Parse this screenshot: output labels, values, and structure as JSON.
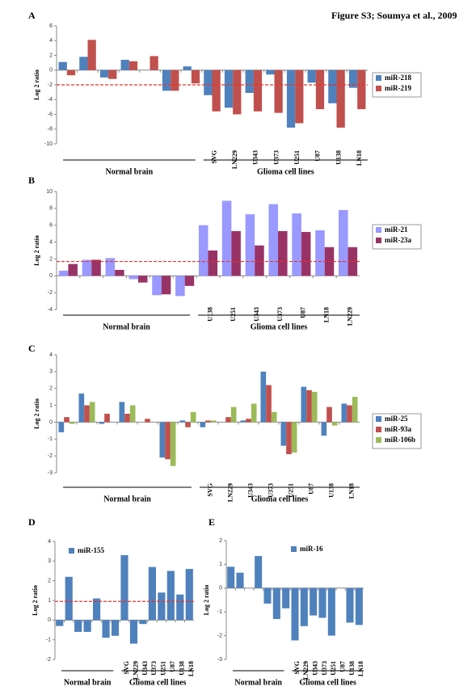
{
  "figure_caption": "Figure S3; Soumya et al., 2009",
  "chart_data": [
    {
      "type": "bar",
      "panel": "A",
      "y_label": "Log 2 ratio",
      "categories": [
        null,
        null,
        null,
        null,
        null,
        null,
        null,
        "SVG",
        "LN229",
        "U343",
        "U373",
        "U251",
        "U87",
        "U138",
        "LN18"
      ],
      "series": [
        {
          "name": "miR-218",
          "color": "#4f81bd",
          "values": [
            1.1,
            1.8,
            -1.0,
            1.4,
            0,
            -2.8,
            0.5,
            -3.4,
            -5.1,
            -3.1,
            -0.6,
            -7.8,
            -1.7,
            -4.5,
            -2.4
          ]
        },
        {
          "name": "miR-219",
          "color": "#c0504d",
          "values": [
            -0.7,
            4.1,
            -1.2,
            1.2,
            1.9,
            -2.8,
            -1.8,
            -5.6,
            -6.0,
            -5.6,
            -5.8,
            -7.2,
            -5.3,
            -7.8,
            -5.3
          ]
        }
      ],
      "ylim": [
        -10,
        6
      ],
      "yticks": [
        -10,
        -8,
        -6,
        -4,
        -2,
        0,
        2,
        4,
        6
      ],
      "ref_line": -2,
      "ref_color": "#e8332a",
      "group_labels": [
        "Normal brain",
        "Glioma cell lines"
      ],
      "legend": "right"
    },
    {
      "type": "bar",
      "panel": "B",
      "y_label": "Log 2 ratio",
      "categories": [
        null,
        null,
        null,
        null,
        null,
        null,
        "U138",
        "U251",
        "U343",
        "U373",
        "U87",
        "LN18",
        "LN229"
      ],
      "series": [
        {
          "name": "miR-21",
          "color": "#9999ff",
          "values": [
            0.6,
            1.9,
            2.1,
            -0.4,
            -2.3,
            -2.4,
            6.0,
            8.9,
            7.3,
            8.5,
            7.4,
            5.4,
            7.8
          ]
        },
        {
          "name": "miR-23a",
          "color": "#993366",
          "values": [
            1.4,
            1.9,
            0.7,
            -0.8,
            -2.2,
            -1.2,
            3.0,
            5.3,
            3.6,
            5.3,
            5.2,
            3.4,
            3.4
          ]
        }
      ],
      "ylim": [
        -4,
        10
      ],
      "yticks": [
        -4,
        -2,
        0,
        2,
        4,
        6,
        8,
        10
      ],
      "ref_line": 1.7,
      "ref_color": "#e8332a",
      "group_labels": [
        "Normal brain",
        "Glioma cell lines"
      ],
      "legend": "right"
    },
    {
      "type": "bar",
      "panel": "C",
      "y_label": "Log 2 ratio",
      "categories": [
        null,
        null,
        null,
        null,
        null,
        null,
        null,
        "SVG",
        "LN229",
        "U343",
        "U373",
        "U251",
        "U87",
        "U138",
        "LN18"
      ],
      "series": [
        {
          "name": "miR-25",
          "color": "#4f81bd",
          "values": [
            -0.6,
            1.7,
            -0.1,
            1.2,
            0,
            -2.1,
            0.1,
            -0.3,
            0,
            0.1,
            3.0,
            -1.4,
            2.1,
            -0.8,
            1.1
          ]
        },
        {
          "name": "miR-93a",
          "color": "#c0504d",
          "values": [
            0.3,
            1.0,
            0.5,
            0.5,
            0.2,
            -2.2,
            -0.3,
            0.1,
            0.3,
            0.2,
            2.2,
            -1.9,
            1.9,
            0.9,
            1.0
          ]
        },
        {
          "name": "miR-106b",
          "color": "#9bbb59",
          "values": [
            -0.1,
            1.2,
            0,
            1.0,
            0,
            -2.6,
            0.6,
            0.1,
            0.9,
            1.1,
            0.6,
            -1.8,
            1.8,
            -0.2,
            1.5
          ]
        }
      ],
      "ylim": [
        -3,
        4
      ],
      "yticks": [
        -3,
        -2,
        -1,
        0,
        1,
        2,
        3,
        4
      ],
      "group_labels": [
        "Normal brain",
        "Glioma cell lines"
      ],
      "legend": "right"
    },
    {
      "type": "bar",
      "panel": "D",
      "y_label": "Log 2 ratio",
      "categories": [
        null,
        null,
        null,
        null,
        null,
        null,
        null,
        "SVG",
        "LN229",
        "U343",
        "U373",
        "U251",
        "U87",
        "U138",
        "LN18"
      ],
      "series": [
        {
          "name": "miR-155",
          "color": "#4f81bd",
          "values": [
            -0.3,
            2.2,
            -0.6,
            -0.6,
            1.1,
            -0.9,
            -0.8,
            3.3,
            -1.2,
            -0.2,
            2.7,
            1.4,
            2.5,
            1.3,
            2.6
          ]
        }
      ],
      "ylim": [
        -2,
        4
      ],
      "yticks": [
        -2,
        -1,
        0,
        1,
        2,
        3,
        4
      ],
      "ref_line": 0.95,
      "ref_color": "#e8332a",
      "group_labels": [
        "Normal brain",
        "Glioma cell lines"
      ],
      "legend": "inside"
    },
    {
      "type": "bar",
      "panel": "E",
      "y_label": "Log 2 ratio",
      "categories": [
        null,
        null,
        null,
        null,
        null,
        null,
        null,
        "SVG",
        "LN229",
        "U343",
        "U373",
        "U251",
        "U87",
        "U138",
        "LN18"
      ],
      "series": [
        {
          "name": "miR-16",
          "color": "#4f81bd",
          "values": [
            0.9,
            0.65,
            0,
            1.35,
            -0.65,
            -1.3,
            -0.85,
            -2.2,
            -1.6,
            -1.15,
            -1.25,
            -2.0,
            0,
            -1.45,
            -1.55
          ]
        }
      ],
      "ylim": [
        -3,
        2
      ],
      "yticks": [
        -3,
        -2,
        -1,
        0,
        1,
        2
      ],
      "group_labels": [
        "Normal brain",
        "Glioma cell lines"
      ],
      "legend": "inside"
    }
  ]
}
